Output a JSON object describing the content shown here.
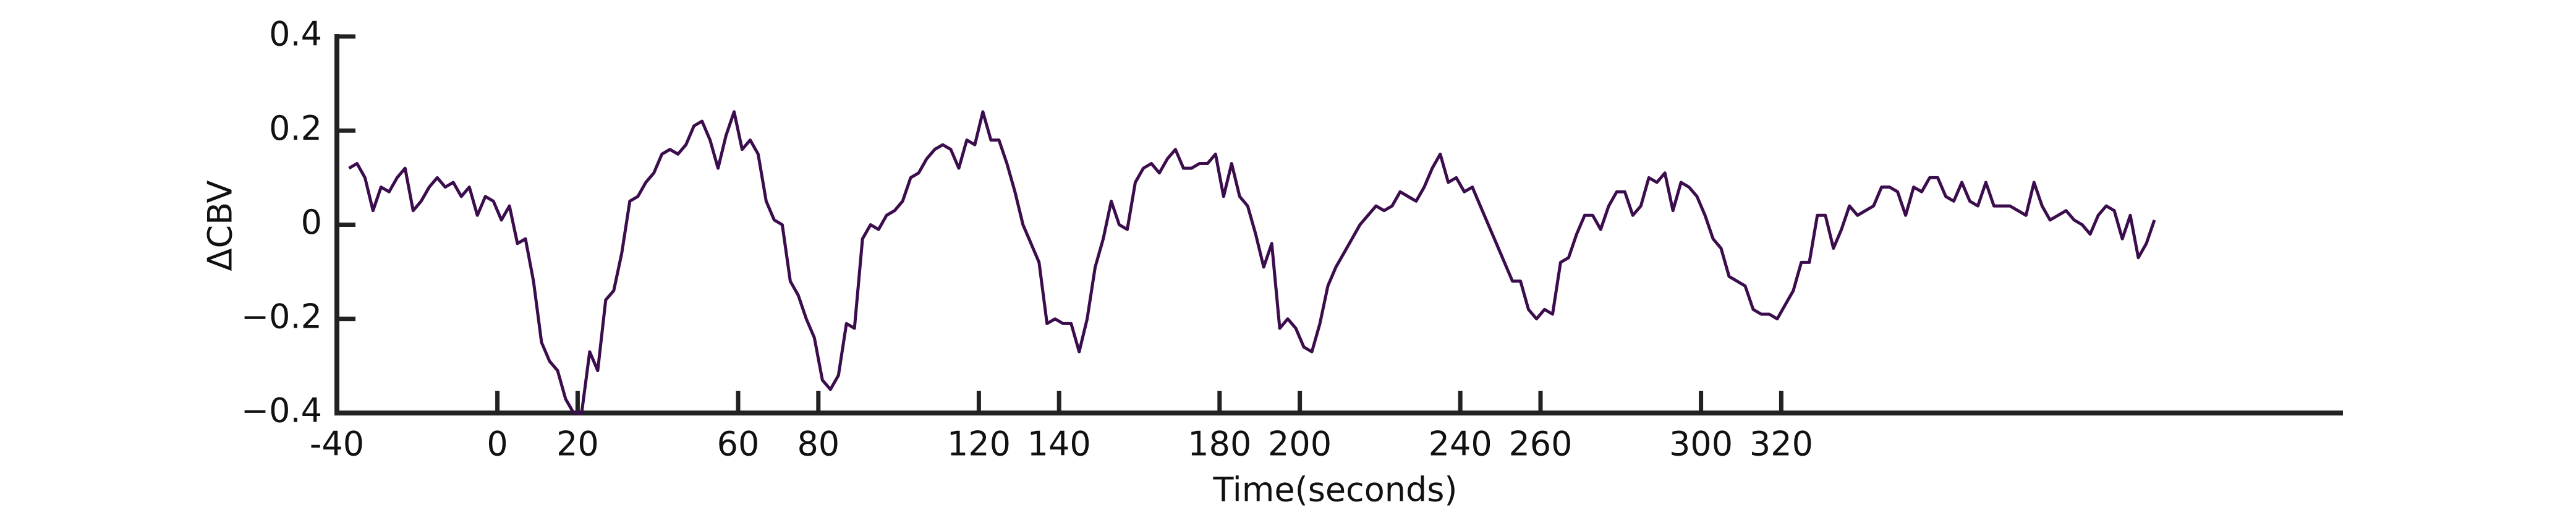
{
  "chart_data": {
    "type": "line",
    "xlabel": "Time(seconds)",
    "ylabel": "ΔCBV",
    "xlim": [
      -40,
      460
    ],
    "ylim": [
      -0.4,
      0.4
    ],
    "xticks": [
      -40,
      0,
      20,
      60,
      80,
      120,
      140,
      180,
      200,
      240,
      260,
      300,
      320
    ],
    "yticks": [
      {
        "value": -0.4,
        "label": "−0.4"
      },
      {
        "value": -0.2,
        "label": "−0.2"
      },
      0,
      0.2,
      0.4
    ],
    "series": [
      {
        "color": "#3b0d4c",
        "x": [
          -37,
          -35,
          -33,
          -31,
          -29,
          -27,
          -25,
          -23,
          -21,
          -19,
          -17,
          -15,
          -13,
          -11,
          -9,
          -7,
          -5,
          -3,
          -1,
          1,
          3,
          5,
          7,
          9,
          11,
          13,
          15,
          17,
          19,
          21,
          23,
          25,
          27,
          29,
          31,
          33,
          35,
          37,
          39,
          41,
          43,
          45,
          47,
          49,
          51,
          53,
          55,
          57,
          59,
          61,
          63,
          65,
          67,
          69,
          71,
          73,
          75,
          77,
          79,
          81,
          83,
          85,
          87,
          89,
          91,
          93,
          95,
          97,
          99,
          101,
          103,
          105,
          107,
          109,
          111,
          113,
          115,
          117,
          119,
          121,
          123,
          125,
          127,
          129,
          131,
          133,
          135,
          137,
          139,
          141,
          143,
          145,
          147,
          149,
          151,
          153,
          155,
          157,
          159,
          161,
          163,
          165,
          167,
          169,
          171,
          173,
          175,
          177,
          179,
          181,
          183,
          185,
          187,
          189,
          191,
          193,
          195,
          197,
          199,
          201,
          203,
          205,
          207,
          209,
          211,
          213,
          215,
          217,
          219,
          221,
          223,
          225,
          227,
          229,
          231,
          233,
          235,
          237,
          239,
          241,
          243,
          245,
          247,
          249,
          251,
          253,
          255,
          257,
          259,
          261,
          263,
          265,
          267,
          269,
          271,
          273,
          275,
          277,
          279,
          281,
          283,
          285,
          287,
          289,
          291,
          293,
          295,
          297,
          299,
          301,
          303,
          305,
          307,
          309,
          311,
          313,
          315,
          317,
          319,
          321,
          323,
          325,
          327,
          329,
          331,
          333,
          335,
          337,
          339,
          341,
          343,
          345,
          347,
          349,
          351,
          353,
          355,
          357,
          359,
          361,
          363,
          365,
          367,
          369,
          371,
          373,
          375,
          377,
          379,
          381,
          383,
          385,
          387,
          389,
          391,
          393,
          395,
          397,
          399,
          401,
          403,
          405,
          407,
          409,
          411,
          413
        ],
        "values": [
          0.12,
          0.13,
          0.1,
          0.03,
          0.08,
          0.07,
          0.1,
          0.12,
          0.03,
          0.05,
          0.08,
          0.1,
          0.08,
          0.09,
          0.06,
          0.08,
          0.02,
          0.06,
          0.05,
          0.01,
          0.04,
          -0.04,
          -0.03,
          -0.12,
          -0.25,
          -0.29,
          -0.31,
          -0.37,
          -0.4,
          -0.4,
          -0.27,
          -0.31,
          -0.16,
          -0.14,
          -0.06,
          0.05,
          0.06,
          0.09,
          0.11,
          0.15,
          0.16,
          0.15,
          0.17,
          0.21,
          0.22,
          0.18,
          0.12,
          0.19,
          0.24,
          0.16,
          0.18,
          0.15,
          0.05,
          0.01,
          0.0,
          -0.12,
          -0.15,
          -0.2,
          -0.24,
          -0.33,
          -0.35,
          -0.32,
          -0.21,
          -0.22,
          -0.03,
          0.0,
          -0.01,
          0.02,
          0.03,
          0.05,
          0.1,
          0.11,
          0.14,
          0.16,
          0.17,
          0.16,
          0.12,
          0.18,
          0.17,
          0.24,
          0.18,
          0.18,
          0.13,
          0.07,
          0.0,
          -0.04,
          -0.08,
          -0.21,
          -0.2,
          -0.21,
          -0.21,
          -0.27,
          -0.2,
          -0.09,
          -0.03,
          0.05,
          0.0,
          -0.01,
          0.09,
          0.12,
          0.13,
          0.11,
          0.14,
          0.16,
          0.12,
          0.12,
          0.13,
          0.13,
          0.15,
          0.06,
          0.13,
          0.06,
          0.04,
          -0.02,
          -0.09,
          -0.04,
          -0.22,
          -0.2,
          -0.22,
          -0.26,
          -0.27,
          -0.21,
          -0.13,
          -0.09,
          -0.06,
          -0.03,
          0.0,
          0.02,
          0.04,
          0.03,
          0.04,
          0.07,
          0.06,
          0.05,
          0.08,
          0.12,
          0.15,
          0.09,
          0.1,
          0.07,
          0.08,
          0.04,
          0.0,
          -0.04,
          -0.08,
          -0.12,
          -0.12,
          -0.18,
          -0.2,
          -0.18,
          -0.19,
          -0.08,
          -0.07,
          -0.02,
          0.02,
          0.02,
          -0.01,
          0.04,
          0.07,
          0.07,
          0.02,
          0.04,
          0.1,
          0.09,
          0.11,
          0.03,
          0.09,
          0.08,
          0.06,
          0.02,
          -0.03,
          -0.05,
          -0.11,
          -0.12,
          -0.13,
          -0.18,
          -0.19,
          -0.19,
          -0.2,
          -0.17,
          -0.14,
          -0.08,
          -0.08,
          0.02,
          0.02,
          -0.05,
          -0.01,
          0.04,
          0.02,
          0.03,
          0.04,
          0.08,
          0.08,
          0.07,
          0.02,
          0.08,
          0.07,
          0.1,
          0.1,
          0.06,
          0.05,
          0.09,
          0.05,
          0.04,
          0.09,
          0.04,
          0.04,
          0.04,
          0.03,
          0.02,
          0.09,
          0.04,
          0.01,
          0.02,
          0.03,
          0.01,
          0.0,
          -0.02,
          0.02,
          0.04,
          0.03,
          -0.03,
          0.02,
          -0.07,
          -0.04,
          0.01
        ]
      }
    ]
  }
}
